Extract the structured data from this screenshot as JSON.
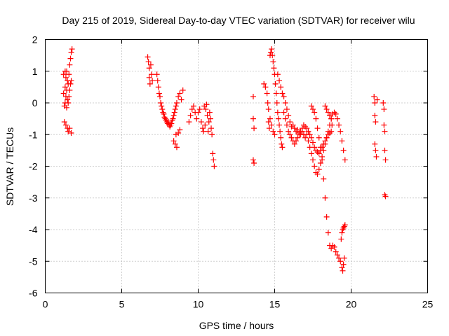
{
  "chart_data": {
    "type": "scatter",
    "title": "Day 215 of 2019, Sidereal Day-to-day VTEC variation (SDTVAR) for receiver wilu",
    "xlabel": "GPS time / hours",
    "ylabel": "SDTVAR / TECUs",
    "xlim": [
      0,
      25
    ],
    "ylim": [
      -6,
      2
    ],
    "xticks": [
      0,
      5,
      10,
      15,
      20,
      25
    ],
    "yticks": [
      -6,
      -5,
      -4,
      -3,
      -2,
      -1,
      0,
      1,
      2
    ],
    "grid": true,
    "marker": "+",
    "marker_color": "#ff0000",
    "series": [
      {
        "name": "SDTVAR",
        "points": [
          [
            1.2,
            0.9
          ],
          [
            1.2,
            0.3
          ],
          [
            1.25,
            -0.1
          ],
          [
            1.25,
            -0.6
          ],
          [
            1.3,
            1.0
          ],
          [
            1.3,
            0.5
          ],
          [
            1.3,
            0.0
          ],
          [
            1.35,
            0.8
          ],
          [
            1.35,
            0.2
          ],
          [
            1.35,
            -0.7
          ],
          [
            1.4,
            1.0
          ],
          [
            1.4,
            0.4
          ],
          [
            1.4,
            -0.15
          ],
          [
            1.45,
            0.7
          ],
          [
            1.45,
            0.1
          ],
          [
            1.45,
            -0.8
          ],
          [
            1.5,
            0.6
          ],
          [
            1.5,
            0.0
          ],
          [
            1.5,
            -0.9
          ],
          [
            1.55,
            0.9
          ],
          [
            1.55,
            0.2
          ],
          [
            1.6,
            1.2
          ],
          [
            1.6,
            0.4
          ],
          [
            1.6,
            -0.8
          ],
          [
            1.65,
            1.4
          ],
          [
            1.65,
            0.6
          ],
          [
            1.7,
            1.6
          ],
          [
            1.7,
            0.7
          ],
          [
            1.7,
            -0.95
          ],
          [
            1.75,
            1.7
          ],
          [
            6.7,
            1.45
          ],
          [
            6.75,
            1.3
          ],
          [
            6.8,
            1.1
          ],
          [
            6.8,
            0.8
          ],
          [
            6.85,
            0.6
          ],
          [
            6.9,
            1.2
          ],
          [
            6.95,
            0.9
          ],
          [
            7.0,
            0.7
          ],
          [
            7.3,
            0.9
          ],
          [
            7.35,
            0.7
          ],
          [
            7.4,
            0.5
          ],
          [
            7.45,
            0.3
          ],
          [
            7.5,
            0.2
          ],
          [
            7.55,
            0.0
          ],
          [
            7.6,
            -0.1
          ],
          [
            7.65,
            -0.2
          ],
          [
            7.7,
            -0.3
          ],
          [
            7.75,
            -0.35
          ],
          [
            7.8,
            -0.45
          ],
          [
            7.85,
            -0.5
          ],
          [
            7.9,
            -0.55
          ],
          [
            7.95,
            -0.6
          ],
          [
            8.0,
            -0.65
          ],
          [
            8.05,
            -0.6
          ],
          [
            8.1,
            -0.7
          ],
          [
            8.15,
            -0.75
          ],
          [
            8.2,
            -0.7
          ],
          [
            8.25,
            -0.65
          ],
          [
            8.3,
            -0.55
          ],
          [
            8.35,
            -0.5
          ],
          [
            8.4,
            -0.4
          ],
          [
            8.45,
            -0.3
          ],
          [
            8.5,
            -0.2
          ],
          [
            8.55,
            -0.1
          ],
          [
            8.6,
            0.0
          ],
          [
            8.7,
            0.2
          ],
          [
            8.8,
            0.3
          ],
          [
            8.9,
            0.1
          ],
          [
            9.0,
            0.4
          ],
          [
            8.4,
            -1.2
          ],
          [
            8.5,
            -1.3
          ],
          [
            8.55,
            -1.0
          ],
          [
            8.6,
            -1.4
          ],
          [
            8.7,
            -0.95
          ],
          [
            8.8,
            -0.85
          ],
          [
            9.4,
            -0.6
          ],
          [
            9.5,
            -0.4
          ],
          [
            9.6,
            -0.2
          ],
          [
            9.7,
            -0.1
          ],
          [
            9.8,
            -0.3
          ],
          [
            9.9,
            -0.5
          ],
          [
            10.0,
            -0.3
          ],
          [
            10.1,
            -0.2
          ],
          [
            10.2,
            -0.6
          ],
          [
            10.3,
            -0.8
          ],
          [
            10.4,
            -0.1
          ],
          [
            10.5,
            -0.2
          ],
          [
            10.55,
            -0.05
          ],
          [
            10.6,
            -0.4
          ],
          [
            10.65,
            -0.9
          ],
          [
            10.7,
            -0.6
          ],
          [
            10.75,
            -0.3
          ],
          [
            10.8,
            -0.5
          ],
          [
            10.85,
            -0.8
          ],
          [
            10.9,
            -1.0
          ],
          [
            10.95,
            -1.6
          ],
          [
            11.0,
            -1.8
          ],
          [
            11.05,
            -2.0
          ],
          [
            10.35,
            -0.9
          ],
          [
            10.45,
            -0.7
          ],
          [
            13.6,
            0.2
          ],
          [
            13.6,
            -0.5
          ],
          [
            13.65,
            -0.8
          ],
          [
            13.6,
            -1.8
          ],
          [
            13.65,
            -1.9
          ],
          [
            14.3,
            0.6
          ],
          [
            14.4,
            0.5
          ],
          [
            14.5,
            0.3
          ],
          [
            14.55,
            0.0
          ],
          [
            14.6,
            -0.2
          ],
          [
            14.6,
            -0.6
          ],
          [
            14.65,
            -0.8
          ],
          [
            14.7,
            1.5
          ],
          [
            14.75,
            1.6
          ],
          [
            14.8,
            1.7
          ],
          [
            14.85,
            1.5
          ],
          [
            14.9,
            1.3
          ],
          [
            14.95,
            1.1
          ],
          [
            15.0,
            0.9
          ],
          [
            15.05,
            0.6
          ],
          [
            15.1,
            0.3
          ],
          [
            15.15,
            0.0
          ],
          [
            15.2,
            -0.3
          ],
          [
            15.25,
            -0.5
          ],
          [
            15.3,
            -0.7
          ],
          [
            15.35,
            -0.9
          ],
          [
            15.4,
            -1.1
          ],
          [
            15.45,
            -1.3
          ],
          [
            15.5,
            -1.4
          ],
          [
            14.7,
            -0.5
          ],
          [
            14.8,
            -0.7
          ],
          [
            14.9,
            -0.9
          ],
          [
            15.0,
            -1.0
          ],
          [
            15.2,
            0.9
          ],
          [
            15.3,
            0.7
          ],
          [
            15.4,
            0.5
          ],
          [
            15.5,
            0.3
          ],
          [
            15.6,
            0.2
          ],
          [
            15.7,
            0.0
          ],
          [
            15.8,
            -0.2
          ],
          [
            15.9,
            -0.4
          ],
          [
            16.0,
            -0.6
          ],
          [
            16.1,
            -0.75
          ],
          [
            16.2,
            -0.7
          ],
          [
            16.3,
            -0.8
          ],
          [
            16.4,
            -0.9
          ],
          [
            16.5,
            -0.85
          ],
          [
            16.6,
            -0.95
          ],
          [
            16.7,
            -1.0
          ],
          [
            16.8,
            -0.9
          ],
          [
            16.9,
            -1.0
          ],
          [
            17.0,
            -1.1
          ],
          [
            17.1,
            -1.0
          ],
          [
            17.2,
            -1.2
          ],
          [
            17.3,
            -1.4
          ],
          [
            17.4,
            -1.6
          ],
          [
            17.5,
            -1.8
          ],
          [
            17.6,
            -2.0
          ],
          [
            17.7,
            -2.2
          ],
          [
            17.8,
            -2.25
          ],
          [
            17.9,
            -2.1
          ],
          [
            18.0,
            -1.9
          ],
          [
            18.1,
            -1.7
          ],
          [
            18.2,
            -1.5
          ],
          [
            18.3,
            -1.3
          ],
          [
            18.4,
            -1.1
          ],
          [
            18.5,
            -0.9
          ],
          [
            18.6,
            -0.7
          ],
          [
            18.7,
            -0.5
          ],
          [
            18.8,
            -0.35
          ],
          [
            18.9,
            -0.3
          ],
          [
            19.0,
            -0.35
          ],
          [
            19.1,
            -0.5
          ],
          [
            19.2,
            -0.7
          ],
          [
            19.3,
            -0.9
          ],
          [
            19.4,
            -1.2
          ],
          [
            19.5,
            -1.5
          ],
          [
            19.6,
            -1.8
          ],
          [
            15.6,
            -0.3
          ],
          [
            15.7,
            -0.5
          ],
          [
            15.8,
            -0.7
          ],
          [
            15.9,
            -0.9
          ],
          [
            16.0,
            -1.0
          ],
          [
            16.1,
            -1.1
          ],
          [
            16.2,
            -1.2
          ],
          [
            16.3,
            -1.3
          ],
          [
            16.4,
            -1.2
          ],
          [
            16.5,
            -1.1
          ],
          [
            16.6,
            -1.0
          ],
          [
            16.7,
            -0.9
          ],
          [
            16.8,
            -0.8
          ],
          [
            16.9,
            -0.7
          ],
          [
            17.0,
            -0.75
          ],
          [
            17.1,
            -0.8
          ],
          [
            17.2,
            -0.9
          ],
          [
            17.3,
            -1.0
          ],
          [
            17.4,
            -1.1
          ],
          [
            17.5,
            -1.25
          ],
          [
            17.6,
            -1.4
          ],
          [
            17.7,
            -1.5
          ],
          [
            17.8,
            -1.55
          ],
          [
            17.9,
            -1.6
          ],
          [
            18.0,
            -1.5
          ],
          [
            18.1,
            -1.4
          ],
          [
            18.2,
            -1.3
          ],
          [
            18.3,
            -1.2
          ],
          [
            18.4,
            -1.1
          ],
          [
            18.5,
            -1.0
          ],
          [
            18.6,
            -0.95
          ],
          [
            18.7,
            -0.9
          ],
          [
            17.4,
            -0.1
          ],
          [
            17.5,
            -0.2
          ],
          [
            17.6,
            -0.3
          ],
          [
            17.7,
            -0.5
          ],
          [
            17.8,
            -0.8
          ],
          [
            17.9,
            -1.1
          ],
          [
            18.0,
            -1.4
          ],
          [
            18.1,
            -1.8
          ],
          [
            18.2,
            -2.4
          ],
          [
            18.3,
            -3.0
          ],
          [
            18.4,
            -3.6
          ],
          [
            18.5,
            -4.1
          ],
          [
            18.6,
            -4.5
          ],
          [
            18.7,
            -4.6
          ],
          [
            18.8,
            -4.5
          ],
          [
            18.9,
            -4.55
          ],
          [
            19.0,
            -4.7
          ],
          [
            19.1,
            -4.8
          ],
          [
            19.2,
            -4.9
          ],
          [
            19.3,
            -5.0
          ],
          [
            19.4,
            -5.2
          ],
          [
            19.45,
            -5.3
          ],
          [
            19.5,
            -5.1
          ],
          [
            19.55,
            -4.9
          ],
          [
            19.35,
            -4.3
          ],
          [
            19.4,
            -4.1
          ],
          [
            19.45,
            -4.0
          ],
          [
            19.5,
            -3.95
          ],
          [
            19.55,
            -3.9
          ],
          [
            19.6,
            -3.85
          ],
          [
            18.3,
            -0.1
          ],
          [
            18.4,
            -0.2
          ],
          [
            18.5,
            -0.3
          ],
          [
            18.6,
            -0.4
          ],
          [
            18.7,
            -0.5
          ],
          [
            18.75,
            -0.7
          ],
          [
            21.5,
            0.2
          ],
          [
            21.55,
            0.0
          ],
          [
            21.55,
            -0.4
          ],
          [
            21.6,
            -0.6
          ],
          [
            21.55,
            -1.3
          ],
          [
            21.6,
            -1.5
          ],
          [
            21.65,
            -1.7
          ],
          [
            21.7,
            0.1
          ],
          [
            22.1,
            0.0
          ],
          [
            22.15,
            -0.2
          ],
          [
            22.15,
            -0.7
          ],
          [
            22.2,
            -0.9
          ],
          [
            22.2,
            -1.5
          ],
          [
            22.25,
            -1.8
          ],
          [
            22.2,
            -2.9
          ],
          [
            22.25,
            -2.95
          ]
        ]
      }
    ]
  }
}
